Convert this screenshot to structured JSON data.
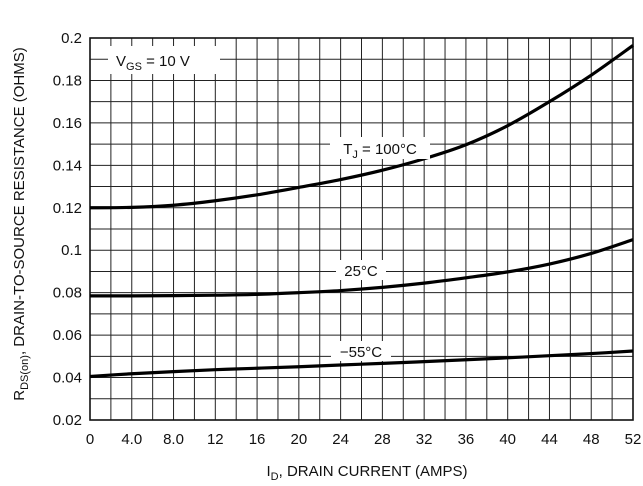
{
  "chart_data": {
    "type": "line",
    "title": "",
    "xlabel": {
      "main": "I",
      "sub": "D",
      "rest": ", DRAIN CURRENT (AMPS)"
    },
    "ylabel": {
      "main": "R",
      "sub": "DS(on)",
      "rest": ", DRAIN-TO-SOURCE RESISTANCE (OHMS)"
    },
    "xlim": [
      0,
      52
    ],
    "ylim": [
      0.02,
      0.2
    ],
    "x_ticks": [
      "0",
      "4.0",
      "8.0",
      "12",
      "16",
      "20",
      "24",
      "28",
      "32",
      "36",
      "40",
      "44",
      "48",
      "52"
    ],
    "y_ticks": [
      "0.02",
      "0.04",
      "0.06",
      "0.08",
      "0.1",
      "0.12",
      "0.14",
      "0.16",
      "0.18",
      "0.2"
    ],
    "grid": true,
    "annotations": [
      {
        "main": "V",
        "sub": "GS",
        "rest": " = 10 V"
      }
    ],
    "series": [
      {
        "name": {
          "main": "T",
          "sub": "J",
          "rest": " =  100°C"
        },
        "x": [
          0,
          4,
          8,
          12,
          16,
          20,
          24,
          28,
          32,
          36,
          40,
          44,
          48,
          52
        ],
        "y": [
          0.12,
          0.1202,
          0.1212,
          0.1233,
          0.1261,
          0.1296,
          0.1333,
          0.1377,
          0.1431,
          0.1497,
          0.1587,
          0.17,
          0.1825,
          0.1965
        ]
      },
      {
        "name": {
          "main": "25°C",
          "sub": "",
          "rest": ""
        },
        "x": [
          0,
          4,
          8,
          12,
          16,
          20,
          24,
          28,
          32,
          36,
          40,
          44,
          48,
          52
        ],
        "y": [
          0.0785,
          0.0785,
          0.0786,
          0.0788,
          0.0792,
          0.08,
          0.081,
          0.0825,
          0.0845,
          0.087,
          0.0898,
          0.0935,
          0.0985,
          0.105
        ]
      },
      {
        "name": {
          "main": "−55°C",
          "sub": "",
          "rest": ""
        },
        "x": [
          0,
          4,
          8,
          12,
          16,
          20,
          24,
          28,
          32,
          36,
          40,
          44,
          48,
          52
        ],
        "y": [
          0.0405,
          0.0418,
          0.0428,
          0.0437,
          0.0444,
          0.0451,
          0.0459,
          0.0467,
          0.0475,
          0.0484,
          0.0493,
          0.0503,
          0.0513,
          0.0525
        ]
      }
    ]
  }
}
